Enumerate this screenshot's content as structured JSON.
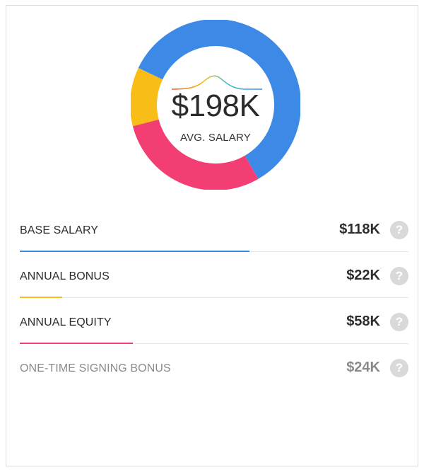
{
  "summary": {
    "value": "$198K",
    "label": "AVG. SALARY"
  },
  "chart_data": {
    "type": "pie",
    "style": "donut",
    "start": "bottom-right, clockwise",
    "slices": [
      {
        "label": "BASE SALARY",
        "value": 118,
        "display": "$118K",
        "color": "#3d89e6"
      },
      {
        "label": "ANNUAL BONUS",
        "value": 22,
        "display": "$22K",
        "color": "#f8bd17"
      },
      {
        "label": "ANNUAL EQUITY",
        "value": 58,
        "display": "$58K",
        "color": "#f33e73"
      }
    ],
    "total": 198
  },
  "breakdown": [
    {
      "label": "BASE SALARY",
      "value": "$118K",
      "color": "#3d89e6",
      "share": 0.596,
      "muted": false
    },
    {
      "label": "ANNUAL BONUS",
      "value": "$22K",
      "color": "#f8bd17",
      "share": 0.111,
      "muted": false
    },
    {
      "label": "ANNUAL EQUITY",
      "value": "$58K",
      "color": "#f33e73",
      "share": 0.293,
      "muted": false
    },
    {
      "label": "ONE-TIME SIGNING BONUS",
      "value": "$24K",
      "color": "",
      "share": 0,
      "muted": true
    }
  ],
  "icons": {
    "help": "question-circle-icon",
    "distribution": "sparkline-curve-icon"
  },
  "help_glyph": "?"
}
